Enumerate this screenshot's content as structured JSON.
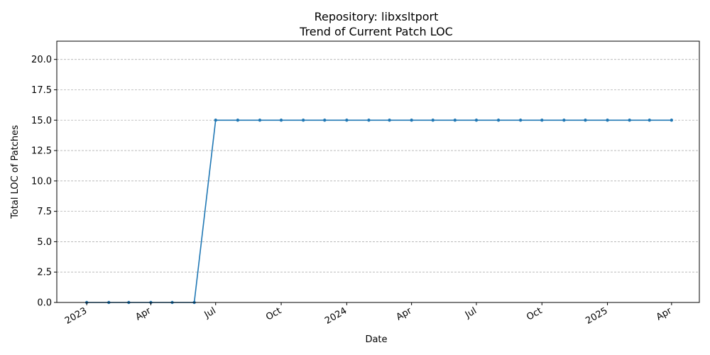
{
  "chart_data": {
    "type": "line",
    "title_line1": "Repository: libxsltport",
    "title_line2": "Trend of Current Patch LOC",
    "xlabel": "Date",
    "ylabel": "Total LOC of Patches",
    "ylim": [
      0,
      21.5
    ],
    "xlim": [
      "2022-11-20",
      "2025-05-10"
    ],
    "yticks": [
      0.0,
      2.5,
      5.0,
      7.5,
      10.0,
      12.5,
      15.0,
      17.5,
      20.0
    ],
    "ytick_labels": [
      "0.0",
      "2.5",
      "5.0",
      "7.5",
      "10.0",
      "12.5",
      "15.0",
      "17.5",
      "20.0"
    ],
    "xticks": [
      {
        "date": "2023-01-01",
        "label": "2023"
      },
      {
        "date": "2023-04-01",
        "label": "Apr"
      },
      {
        "date": "2023-07-01",
        "label": "Jul"
      },
      {
        "date": "2023-10-01",
        "label": "Oct"
      },
      {
        "date": "2024-01-01",
        "label": "2024"
      },
      {
        "date": "2024-04-01",
        "label": "Apr"
      },
      {
        "date": "2024-07-01",
        "label": "Jul"
      },
      {
        "date": "2024-10-01",
        "label": "Oct"
      },
      {
        "date": "2025-01-01",
        "label": "2025"
      },
      {
        "date": "2025-04-01",
        "label": "Apr"
      }
    ],
    "grid": "y",
    "color": "#1f77b4",
    "series": [
      {
        "x": [
          "2023-01-01",
          "2023-02-01",
          "2023-03-01",
          "2023-04-01",
          "2023-05-01",
          "2023-06-01",
          "2023-07-01",
          "2023-08-01",
          "2023-09-01",
          "2023-10-01",
          "2023-11-01",
          "2023-12-01",
          "2024-01-01",
          "2024-02-01",
          "2024-03-01",
          "2024-04-01",
          "2024-05-01",
          "2024-06-01",
          "2024-07-01",
          "2024-08-01",
          "2024-09-01",
          "2024-10-01",
          "2024-11-01",
          "2024-12-01",
          "2025-01-01",
          "2025-02-01",
          "2025-03-01",
          "2025-04-01"
        ],
        "values": [
          0,
          0,
          0,
          0,
          0,
          0,
          15,
          15,
          15,
          15,
          15,
          15,
          15,
          15,
          15,
          15,
          15,
          15,
          15,
          15,
          15,
          15,
          15,
          15,
          15,
          15,
          15,
          15
        ]
      }
    ]
  }
}
